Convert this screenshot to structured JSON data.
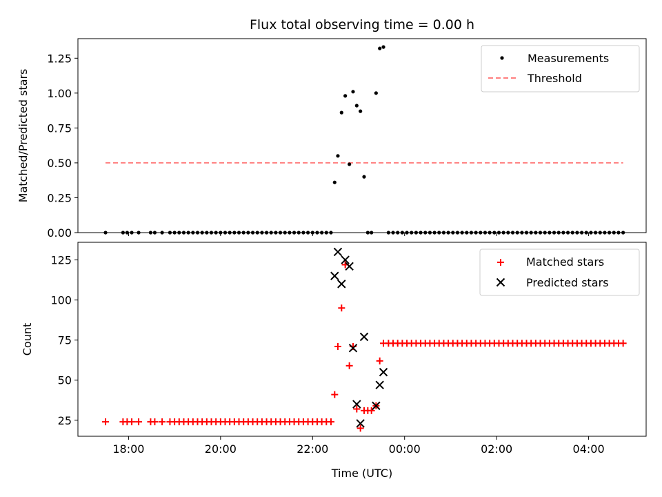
{
  "chart_data": [
    {
      "type": "scatter",
      "title": "Flux total observing time = 0.00 h",
      "xlabel": "",
      "ylabel": "Matched/Predicted stars",
      "xlim_hours": [
        16.9,
        29.25
      ],
      "ylim": [
        0,
        1.39
      ],
      "yticks": [
        0,
        0.25,
        0.5,
        0.75,
        1.0,
        1.25
      ],
      "ytick_labels": [
        "0.00",
        "0.25",
        "0.50",
        "0.75",
        "1.00",
        "1.25"
      ],
      "xticks_hours": [
        18,
        20,
        22,
        24,
        26,
        28
      ],
      "legend_position": "top-right",
      "threshold": {
        "name": "Threshold",
        "value": 0.5,
        "x_range_hours": [
          17.5,
          28.75
        ],
        "color": "#ff7f7f"
      },
      "series": [
        {
          "name": "Measurements",
          "color": "#000000",
          "points": [
            [
              17.5,
              0
            ],
            [
              17.88,
              0
            ],
            [
              17.97,
              0
            ],
            [
              18.07,
              0
            ],
            [
              18.22,
              0
            ],
            [
              18.48,
              0
            ],
            [
              18.57,
              0
            ],
            [
              18.73,
              0
            ],
            [
              18.9,
              0
            ],
            [
              19.0,
              0
            ],
            [
              19.1,
              0
            ],
            [
              19.2,
              0
            ],
            [
              19.3,
              0
            ],
            [
              19.4,
              0
            ],
            [
              19.5,
              0
            ],
            [
              19.6,
              0
            ],
            [
              19.7,
              0
            ],
            [
              19.8,
              0
            ],
            [
              19.9,
              0
            ],
            [
              20.0,
              0
            ],
            [
              20.1,
              0
            ],
            [
              20.2,
              0
            ],
            [
              20.3,
              0
            ],
            [
              20.4,
              0
            ],
            [
              20.5,
              0
            ],
            [
              20.6,
              0
            ],
            [
              20.7,
              0
            ],
            [
              20.8,
              0
            ],
            [
              20.9,
              0
            ],
            [
              21.0,
              0
            ],
            [
              21.1,
              0
            ],
            [
              21.2,
              0
            ],
            [
              21.3,
              0
            ],
            [
              21.4,
              0
            ],
            [
              21.5,
              0
            ],
            [
              21.6,
              0
            ],
            [
              21.7,
              0
            ],
            [
              21.8,
              0
            ],
            [
              21.9,
              0
            ],
            [
              22.0,
              0
            ],
            [
              22.1,
              0
            ],
            [
              22.2,
              0
            ],
            [
              22.3,
              0
            ],
            [
              22.4,
              0
            ],
            [
              22.48,
              0.36
            ],
            [
              22.55,
              0.55
            ],
            [
              22.63,
              0.86
            ],
            [
              22.71,
              0.98
            ],
            [
              22.8,
              0.49
            ],
            [
              22.88,
              1.01
            ],
            [
              22.96,
              0.91
            ],
            [
              23.04,
              0.87
            ],
            [
              23.12,
              0.4
            ],
            [
              23.2,
              0
            ],
            [
              23.28,
              0
            ],
            [
              23.38,
              1.0
            ],
            [
              23.46,
              1.32
            ],
            [
              23.54,
              1.33
            ],
            [
              23.65,
              0
            ],
            [
              23.75,
              0
            ],
            [
              23.85,
              0
            ],
            [
              23.95,
              0
            ],
            [
              24.05,
              0
            ],
            [
              24.15,
              0
            ],
            [
              24.25,
              0
            ],
            [
              24.35,
              0
            ],
            [
              24.45,
              0
            ],
            [
              24.55,
              0
            ],
            [
              24.65,
              0
            ],
            [
              24.75,
              0
            ],
            [
              24.85,
              0
            ],
            [
              24.95,
              0
            ],
            [
              25.05,
              0
            ],
            [
              25.15,
              0
            ],
            [
              25.25,
              0
            ],
            [
              25.35,
              0
            ],
            [
              25.45,
              0
            ],
            [
              25.55,
              0
            ],
            [
              25.65,
              0
            ],
            [
              25.75,
              0
            ],
            [
              25.85,
              0
            ],
            [
              25.95,
              0
            ],
            [
              26.05,
              0
            ],
            [
              26.15,
              0
            ],
            [
              26.25,
              0
            ],
            [
              26.35,
              0
            ],
            [
              26.45,
              0
            ],
            [
              26.55,
              0
            ],
            [
              26.65,
              0
            ],
            [
              26.75,
              0
            ],
            [
              26.85,
              0
            ],
            [
              26.95,
              0
            ],
            [
              27.05,
              0
            ],
            [
              27.15,
              0
            ],
            [
              27.25,
              0
            ],
            [
              27.35,
              0
            ],
            [
              27.45,
              0
            ],
            [
              27.55,
              0
            ],
            [
              27.65,
              0
            ],
            [
              27.75,
              0
            ],
            [
              27.85,
              0
            ],
            [
              27.95,
              0
            ],
            [
              28.05,
              0
            ],
            [
              28.15,
              0
            ],
            [
              28.25,
              0
            ],
            [
              28.35,
              0
            ],
            [
              28.45,
              0
            ],
            [
              28.55,
              0
            ],
            [
              28.65,
              0
            ],
            [
              28.75,
              0
            ]
          ]
        }
      ]
    },
    {
      "type": "scatter",
      "title": "",
      "xlabel": "Time (UTC)",
      "ylabel": "Count",
      "xlim_hours": [
        16.9,
        29.25
      ],
      "ylim": [
        15,
        136
      ],
      "yticks": [
        25,
        50,
        75,
        100,
        125
      ],
      "ytick_labels": [
        "25",
        "50",
        "75",
        "100",
        "125"
      ],
      "xticks_hours": [
        18,
        20,
        22,
        24,
        26,
        28
      ],
      "xtick_labels": [
        "18:00",
        "20:00",
        "22:00",
        "00:00",
        "02:00",
        "04:00"
      ],
      "legend_position": "top-right",
      "series": [
        {
          "name": "Matched stars",
          "marker": "+",
          "color": "#ff0000",
          "points": [
            [
              17.5,
              24
            ],
            [
              17.88,
              24
            ],
            [
              17.97,
              24
            ],
            [
              18.07,
              24
            ],
            [
              18.22,
              24
            ],
            [
              18.48,
              24
            ],
            [
              18.57,
              24
            ],
            [
              18.73,
              24
            ],
            [
              18.9,
              24
            ],
            [
              19.0,
              24
            ],
            [
              19.1,
              24
            ],
            [
              19.2,
              24
            ],
            [
              19.3,
              24
            ],
            [
              19.4,
              24
            ],
            [
              19.5,
              24
            ],
            [
              19.6,
              24
            ],
            [
              19.7,
              24
            ],
            [
              19.8,
              24
            ],
            [
              19.9,
              24
            ],
            [
              20.0,
              24
            ],
            [
              20.1,
              24
            ],
            [
              20.2,
              24
            ],
            [
              20.3,
              24
            ],
            [
              20.4,
              24
            ],
            [
              20.5,
              24
            ],
            [
              20.6,
              24
            ],
            [
              20.7,
              24
            ],
            [
              20.8,
              24
            ],
            [
              20.9,
              24
            ],
            [
              21.0,
              24
            ],
            [
              21.1,
              24
            ],
            [
              21.2,
              24
            ],
            [
              21.3,
              24
            ],
            [
              21.4,
              24
            ],
            [
              21.5,
              24
            ],
            [
              21.6,
              24
            ],
            [
              21.7,
              24
            ],
            [
              21.8,
              24
            ],
            [
              21.9,
              24
            ],
            [
              22.0,
              24
            ],
            [
              22.1,
              24
            ],
            [
              22.2,
              24
            ],
            [
              22.3,
              24
            ],
            [
              22.4,
              24
            ],
            [
              22.48,
              41
            ],
            [
              22.55,
              71
            ],
            [
              22.63,
              95
            ],
            [
              22.71,
              122
            ],
            [
              22.8,
              59
            ],
            [
              22.88,
              71
            ],
            [
              22.96,
              32
            ],
            [
              23.04,
              20
            ],
            [
              23.12,
              31
            ],
            [
              23.2,
              31
            ],
            [
              23.28,
              31
            ],
            [
              23.38,
              34
            ],
            [
              23.46,
              62
            ],
            [
              23.54,
              73
            ],
            [
              23.65,
              73
            ],
            [
              23.75,
              73
            ],
            [
              23.85,
              73
            ],
            [
              23.95,
              73
            ],
            [
              24.05,
              73
            ],
            [
              24.15,
              73
            ],
            [
              24.25,
              73
            ],
            [
              24.35,
              73
            ],
            [
              24.45,
              73
            ],
            [
              24.55,
              73
            ],
            [
              24.65,
              73
            ],
            [
              24.75,
              73
            ],
            [
              24.85,
              73
            ],
            [
              24.95,
              73
            ],
            [
              25.05,
              73
            ],
            [
              25.15,
              73
            ],
            [
              25.25,
              73
            ],
            [
              25.35,
              73
            ],
            [
              25.45,
              73
            ],
            [
              25.55,
              73
            ],
            [
              25.65,
              73
            ],
            [
              25.75,
              73
            ],
            [
              25.85,
              73
            ],
            [
              25.95,
              73
            ],
            [
              26.05,
              73
            ],
            [
              26.15,
              73
            ],
            [
              26.25,
              73
            ],
            [
              26.35,
              73
            ],
            [
              26.45,
              73
            ],
            [
              26.55,
              73
            ],
            [
              26.65,
              73
            ],
            [
              26.75,
              73
            ],
            [
              26.85,
              73
            ],
            [
              26.95,
              73
            ],
            [
              27.05,
              73
            ],
            [
              27.15,
              73
            ],
            [
              27.25,
              73
            ],
            [
              27.35,
              73
            ],
            [
              27.45,
              73
            ],
            [
              27.55,
              73
            ],
            [
              27.65,
              73
            ],
            [
              27.75,
              73
            ],
            [
              27.85,
              73
            ],
            [
              27.95,
              73
            ],
            [
              28.05,
              73
            ],
            [
              28.15,
              73
            ],
            [
              28.25,
              73
            ],
            [
              28.35,
              73
            ],
            [
              28.45,
              73
            ],
            [
              28.55,
              73
            ],
            [
              28.65,
              73
            ],
            [
              28.75,
              73
            ]
          ]
        },
        {
          "name": "Predicted stars",
          "marker": "x",
          "color": "#000000",
          "points": [
            [
              22.48,
              115
            ],
            [
              22.55,
              130
            ],
            [
              22.63,
              110
            ],
            [
              22.71,
              125
            ],
            [
              22.8,
              121
            ],
            [
              22.88,
              70
            ],
            [
              22.96,
              35
            ],
            [
              23.04,
              23
            ],
            [
              23.12,
              77
            ],
            [
              23.38,
              34
            ],
            [
              23.46,
              47
            ],
            [
              23.54,
              55
            ]
          ]
        }
      ]
    }
  ]
}
